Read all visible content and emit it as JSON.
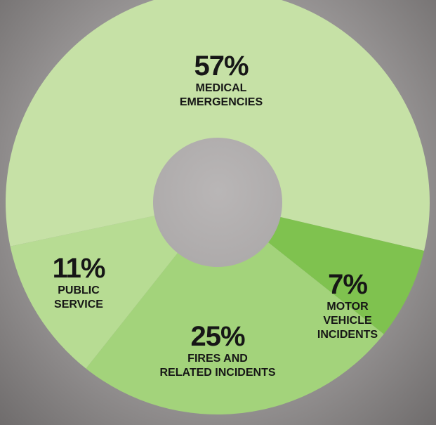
{
  "chart_data": {
    "type": "donut",
    "categories": [
      "MEDICAL\nEMERGENCIES",
      "MOTOR VEHICLE\nINCIDENTS",
      "FIRES AND\nRELATED INCIDENTS",
      "PUBLIC\nSERVICE"
    ],
    "values": [
      57,
      7,
      25,
      11
    ],
    "value_labels": [
      "57%",
      "7%",
      "25%",
      "11%"
    ],
    "colors": [
      "#c6e1a6",
      "#7fc24f",
      "#a3d37b",
      "#b7dc93"
    ]
  }
}
